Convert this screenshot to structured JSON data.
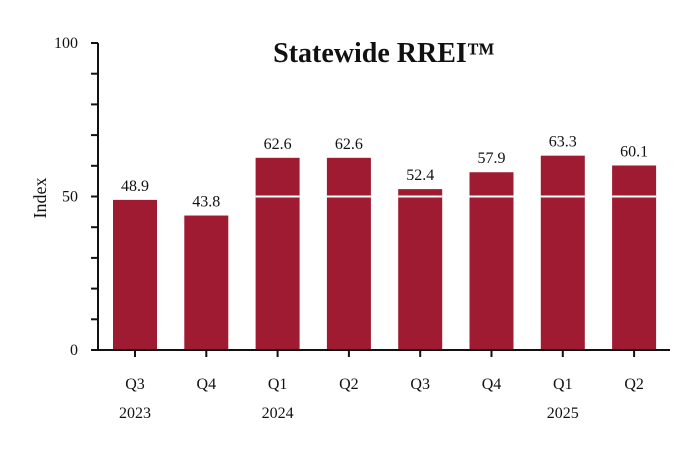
{
  "chart_data": {
    "type": "bar",
    "title": "Statewide RREI™",
    "ylabel": "Index",
    "xlabel": "",
    "ylim": [
      0,
      100
    ],
    "y_ticks": [
      "0",
      "50",
      "100"
    ],
    "categories": [
      "Q3",
      "Q4",
      "Q1",
      "Q2",
      "Q3",
      "Q4",
      "Q1",
      "Q2"
    ],
    "year_labels": [
      {
        "category_index": 0,
        "label": "2023"
      },
      {
        "category_index": 2,
        "label": "2024"
      },
      {
        "category_index": 6,
        "label": "2025"
      }
    ],
    "values": [
      48.9,
      43.8,
      62.6,
      62.6,
      52.4,
      57.9,
      63.3,
      60.1
    ],
    "value_labels": [
      "48.9",
      "43.8",
      "62.6",
      "62.6",
      "52.4",
      "57.9",
      "63.3",
      "60.1"
    ],
    "reference_line_value": 50,
    "bar_color": "#9e1b32",
    "reference_line_color": "#ffffff",
    "grid": false,
    "legend": "none"
  }
}
